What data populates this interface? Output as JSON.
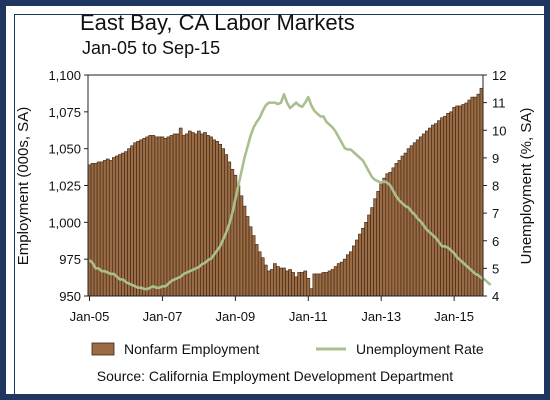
{
  "chart_data": {
    "type": "bar+line",
    "title": "East Bay, CA Labor Markets",
    "subtitle": "Jan-05 to Sep-15",
    "ylabel_left": "Employment (000s, SA)",
    "ylabel_right": "Unemployment (%, SA)",
    "source": "Source: California Employment Development Department",
    "ylim_left": [
      950,
      1100
    ],
    "yticks_left": [
      "950",
      "975",
      "1,000",
      "1,025",
      "1,050",
      "1,075",
      "1,100"
    ],
    "ylim_right": [
      4,
      12
    ],
    "yticks_right": [
      "4",
      "5",
      "6",
      "7",
      "8",
      "9",
      "10",
      "11",
      "12"
    ],
    "xticks": [
      {
        "label": "Jan-05",
        "index": 0
      },
      {
        "label": "Jan-07",
        "index": 24
      },
      {
        "label": "Jan-09",
        "index": 48
      },
      {
        "label": "Jan-11",
        "index": 72
      },
      {
        "label": "Jan-13",
        "index": 96
      },
      {
        "label": "Jan-15",
        "index": 120
      }
    ],
    "start_month": "Jan-05",
    "end_month": "Sep-15",
    "grid": false,
    "legend_position": "bottom",
    "colors": {
      "bar_fill": "#9b6b43",
      "bar_stroke": "#3a2414",
      "line": "#a9bf8f",
      "frame": "#1f3660"
    },
    "series": [
      {
        "name": "Nonfarm Employment",
        "kind": "bar",
        "axis": "left",
        "values": [
          1039,
          1040,
          1040,
          1041,
          1041,
          1042,
          1043,
          1042,
          1044,
          1045,
          1046,
          1047,
          1048,
          1050,
          1052,
          1054,
          1055,
          1056,
          1057,
          1058,
          1059,
          1059,
          1058,
          1058,
          1058,
          1057,
          1058,
          1059,
          1060,
          1060,
          1064,
          1059,
          1060,
          1062,
          1061,
          1060,
          1062,
          1060,
          1061,
          1059,
          1058,
          1056,
          1055,
          1053,
          1050,
          1046,
          1041,
          1036,
          1032,
          1025,
          1018,
          1011,
          1004,
          997,
          991,
          985,
          980,
          976,
          971,
          967,
          968,
          972,
          970,
          969,
          969,
          967,
          968,
          966,
          963,
          966,
          966,
          967,
          962,
          955,
          965,
          965,
          965,
          966,
          966,
          967,
          968,
          970,
          972,
          973,
          975,
          978,
          980,
          984,
          988,
          992,
          996,
          1000,
          1005,
          1010,
          1016,
          1021,
          1027,
          1030,
          1033,
          1034,
          1037,
          1040,
          1042,
          1045,
          1047,
          1050,
          1052,
          1054,
          1056,
          1058,
          1060,
          1062,
          1064,
          1066,
          1067,
          1069,
          1071,
          1072,
          1074,
          1075,
          1078,
          1079,
          1079,
          1080,
          1081,
          1083,
          1085,
          1085,
          1087,
          1091
        ]
      },
      {
        "name": "Unemployment Rate",
        "kind": "line",
        "axis": "right",
        "values": [
          5.3,
          5.2,
          5.0,
          5.0,
          4.9,
          4.9,
          4.85,
          4.8,
          4.8,
          4.7,
          4.6,
          4.6,
          4.5,
          4.45,
          4.4,
          4.35,
          4.3,
          4.3,
          4.25,
          4.25,
          4.3,
          4.35,
          4.3,
          4.3,
          4.35,
          4.35,
          4.45,
          4.55,
          4.6,
          4.65,
          4.7,
          4.8,
          4.85,
          4.9,
          4.95,
          5.0,
          5.05,
          5.15,
          5.2,
          5.3,
          5.35,
          5.5,
          5.65,
          5.8,
          6.05,
          6.3,
          6.6,
          7.0,
          7.5,
          8.0,
          8.5,
          9.0,
          9.4,
          9.8,
          10.1,
          10.3,
          10.45,
          10.7,
          10.9,
          11.0,
          11.0,
          11.0,
          10.95,
          11.0,
          11.3,
          11.0,
          10.8,
          10.9,
          11.0,
          10.9,
          10.85,
          11.0,
          11.2,
          10.9,
          10.7,
          10.6,
          10.5,
          10.5,
          10.3,
          10.2,
          10.1,
          9.95,
          9.75,
          9.55,
          9.35,
          9.3,
          9.3,
          9.2,
          9.1,
          9.0,
          8.9,
          8.7,
          8.5,
          8.3,
          8.2,
          8.15,
          8.1,
          8.15,
          8.1,
          8.0,
          7.8,
          7.6,
          7.45,
          7.35,
          7.25,
          7.2,
          7.05,
          6.95,
          6.8,
          6.7,
          6.55,
          6.4,
          6.3,
          6.2,
          6.1,
          5.95,
          5.8,
          5.8,
          5.75,
          5.65,
          5.55,
          5.4,
          5.3,
          5.2,
          5.1,
          5.0,
          4.9,
          4.8,
          4.75,
          4.65,
          4.6,
          4.5,
          4.4
        ]
      }
    ]
  }
}
